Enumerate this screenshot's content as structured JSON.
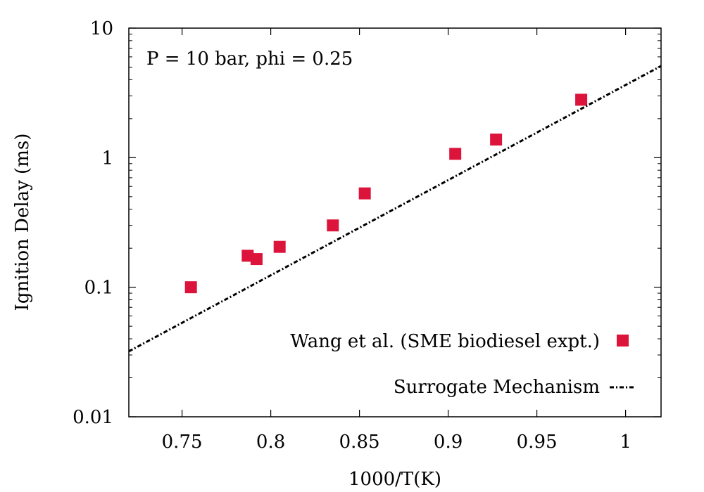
{
  "chart_data": {
    "type": "scatter",
    "title": "",
    "annotation": "P = 10 bar, phi = 0.25",
    "xlabel": "1000/T(K)",
    "ylabel": "Ignition Delay (ms)",
    "xlim": [
      0.72,
      1.02
    ],
    "ylim": [
      0.01,
      10
    ],
    "yscale": "log",
    "grid": false,
    "legend_position": "bottom-right",
    "x_ticks": [
      0.75,
      0.8,
      0.85,
      0.9,
      0.95,
      1
    ],
    "x_tick_labels": [
      "0.75",
      "0.8",
      "0.85",
      "0.9",
      "0.95",
      "1"
    ],
    "y_ticks": [
      0.01,
      0.1,
      1,
      10
    ],
    "y_tick_labels": [
      "0.01",
      "0.1",
      "1",
      "10"
    ],
    "series": [
      {
        "name": "Wang et al. (SME biodiesel expt.)",
        "kind": "points",
        "marker": "square",
        "color": "#dc143c",
        "x": [
          0.755,
          0.787,
          0.792,
          0.805,
          0.835,
          0.853,
          0.904,
          0.927,
          0.975
        ],
        "y": [
          0.1,
          0.175,
          0.165,
          0.205,
          0.3,
          0.53,
          1.07,
          1.38,
          2.8
        ]
      },
      {
        "name": "Surrogate Mechanism",
        "kind": "line",
        "style": "dash-dot",
        "color": "#000000",
        "x": [
          0.72,
          1.02
        ],
        "y": [
          0.032,
          5.1
        ]
      }
    ]
  }
}
